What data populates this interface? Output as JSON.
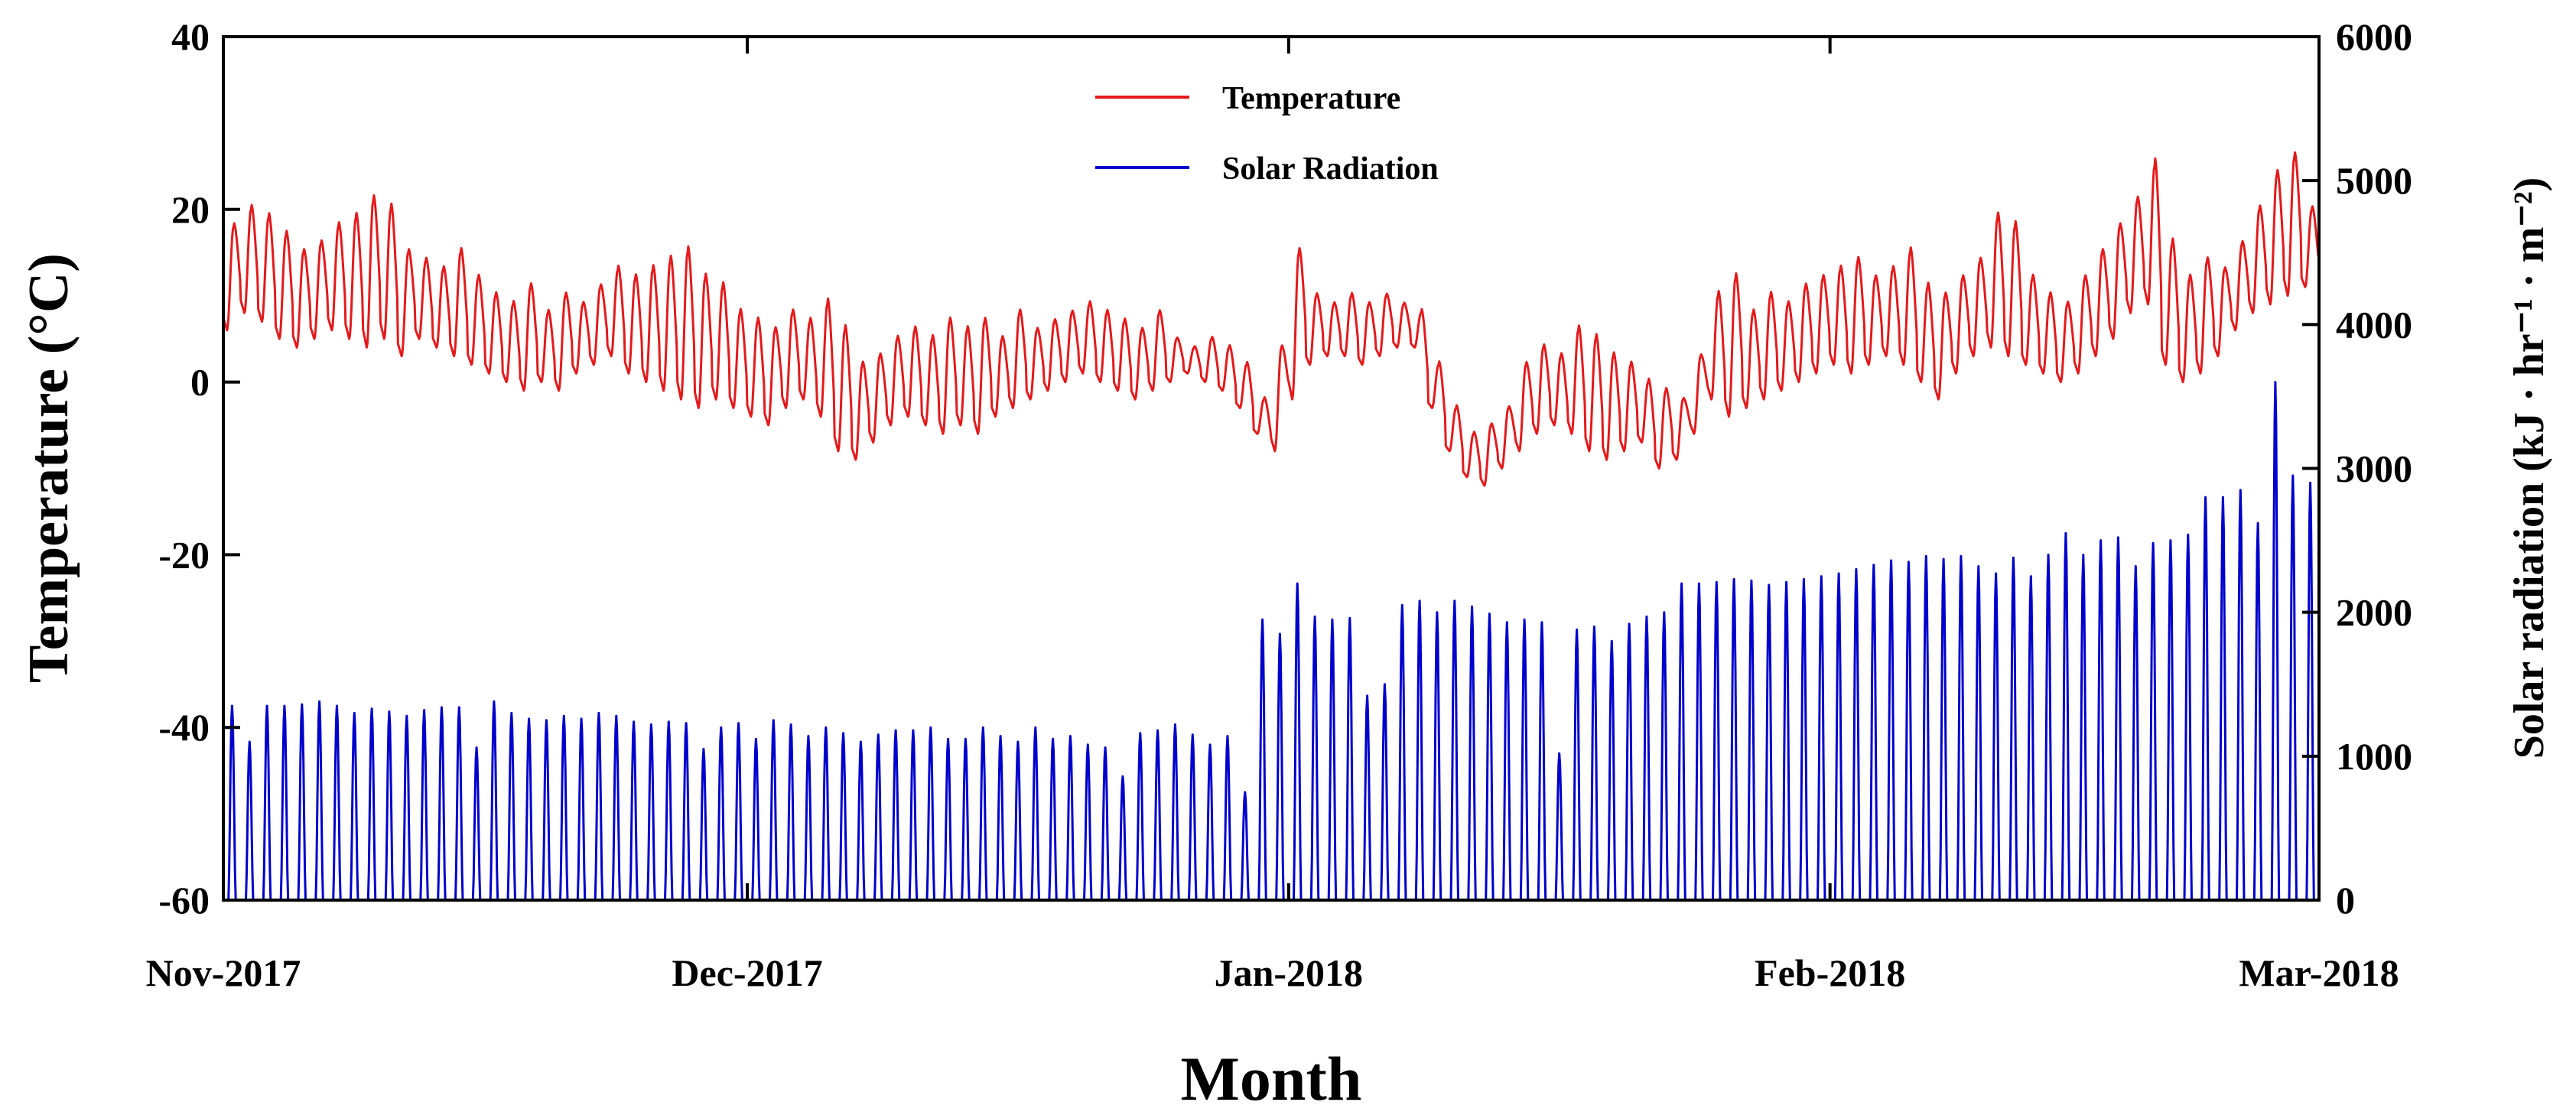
{
  "chart_data": {
    "type": "line",
    "title": "",
    "xlabel": "Month",
    "ylabel_left": "Temperature (°C)",
    "ylabel_right": "Solar radiation (kJ · hr⁻¹ · m⁻²)",
    "x_tick_labels": [
      "Nov-2017",
      "Dec-2017",
      "Jan-2018",
      "Feb-2018",
      "Mar-2018"
    ],
    "x_range_days": [
      0,
      120
    ],
    "x_tick_days": [
      0,
      30,
      61,
      92,
      120
    ],
    "y_left_ticks": [
      "40",
      "20",
      "0",
      "-20",
      "-40",
      "-60"
    ],
    "y_left_lim": [
      -60,
      40
    ],
    "y_right_ticks": [
      "6000",
      "5000",
      "4000",
      "3000",
      "2000",
      "1000",
      "0"
    ],
    "y_right_lim": [
      0,
      6000
    ],
    "legend_position": "top-center",
    "legend": [
      "Temperature",
      "Solar Radiation"
    ],
    "colors": {
      "temperature": "#e31a1c",
      "solar": "#0000cc",
      "axis": "#000000"
    },
    "series": [
      {
        "name": "Temperature",
        "axis": "left",
        "unit": "°C",
        "note": "hourly values; daily (min,max) envelope listed per day, day 0 = 1 Nov 2017",
        "daily_min": [
          6,
          8,
          7,
          5,
          4,
          5,
          6,
          5,
          4,
          5,
          3,
          5,
          4,
          3,
          2,
          1,
          0,
          -1,
          0,
          -1,
          1,
          2,
          3,
          1,
          0,
          -1,
          -2,
          -3,
          -2,
          -3,
          -4,
          -5,
          -3,
          -2,
          -4,
          -8,
          -9,
          -7,
          -5,
          -4,
          -5,
          -6,
          -5,
          -6,
          -4,
          -3,
          -2,
          -1,
          0,
          1,
          0,
          -1,
          -2,
          -1,
          0,
          1,
          0,
          -1,
          -3,
          -6,
          -8,
          -2,
          2,
          3,
          3,
          2,
          3,
          4,
          4,
          -3,
          -8,
          -11,
          -12,
          -10,
          -8,
          -6,
          -5,
          -6,
          -8,
          -9,
          -8,
          -7,
          -10,
          -9,
          -6,
          -2,
          -4,
          -3,
          -2,
          -1,
          0,
          1,
          2,
          1,
          2,
          3,
          2,
          0,
          -2,
          1,
          3,
          4,
          3,
          2,
          1,
          0,
          1,
          3,
          5,
          8,
          9,
          2,
          0,
          1,
          3,
          6,
          8,
          9,
          10,
          11
        ],
        "daily_max": [
          18,
          20,
          19,
          17,
          15,
          16,
          18,
          19,
          21,
          20,
          15,
          14,
          13,
          15,
          12,
          10,
          9,
          11,
          8,
          10,
          9,
          11,
          13,
          12,
          13,
          14,
          15,
          12,
          11,
          8,
          7,
          6,
          8,
          7,
          9,
          6,
          2,
          3,
          5,
          6,
          5,
          7,
          6,
          7,
          5,
          8,
          6,
          7,
          8,
          9,
          8,
          7,
          6,
          8,
          5,
          4,
          5,
          4,
          2,
          -2,
          4,
          15,
          10,
          9,
          10,
          9,
          10,
          9,
          8,
          2,
          -3,
          -6,
          -5,
          -3,
          2,
          4,
          3,
          6,
          5,
          3,
          2,
          0,
          -1,
          -2,
          3,
          10,
          12,
          8,
          10,
          9,
          11,
          12,
          13,
          14,
          12,
          13,
          15,
          11,
          10,
          12,
          14,
          19,
          18,
          12,
          10,
          9,
          12,
          15,
          18,
          21,
          25,
          16,
          12,
          14,
          13,
          16,
          20,
          24,
          26,
          20
        ]
      },
      {
        "name": "Solar Radiation",
        "axis": "right",
        "unit": "kJ·hr⁻¹·m⁻²",
        "note": "hourly values; daily midday peak listed per day, day 0 = 1 Nov 2017",
        "daily_peak": [
          1350,
          1100,
          1350,
          1350,
          1360,
          1380,
          1350,
          1300,
          1330,
          1310,
          1280,
          1320,
          1340,
          1340,
          1060,
          1380,
          1300,
          1260,
          1250,
          1280,
          1260,
          1300,
          1280,
          1240,
          1220,
          1240,
          1230,
          1050,
          1200,
          1230,
          1120,
          1250,
          1220,
          1140,
          1200,
          1160,
          1100,
          1150,
          1180,
          1180,
          1200,
          1120,
          1120,
          1200,
          1140,
          1100,
          1200,
          1120,
          1140,
          1080,
          1060,
          860,
          1160,
          1180,
          1220,
          1150,
          1080,
          1140,
          750,
          1950,
          1850,
          2200,
          1970,
          1950,
          1960,
          1420,
          1500,
          2050,
          2080,
          2000,
          2080,
          2040,
          1990,
          1930,
          1950,
          1930,
          1020,
          1880,
          1900,
          1800,
          1920,
          1970,
          2000,
          2200,
          2200,
          2210,
          2230,
          2220,
          2190,
          2210,
          2230,
          2250,
          2270,
          2300,
          2330,
          2360,
          2350,
          2390,
          2370,
          2390,
          2320,
          2270,
          2380,
          2250,
          2400,
          2550,
          2400,
          2500,
          2520,
          2320,
          2480,
          2500,
          2540,
          2800,
          2800,
          2850,
          2620,
          3600,
          2950,
          2900
        ]
      }
    ]
  }
}
